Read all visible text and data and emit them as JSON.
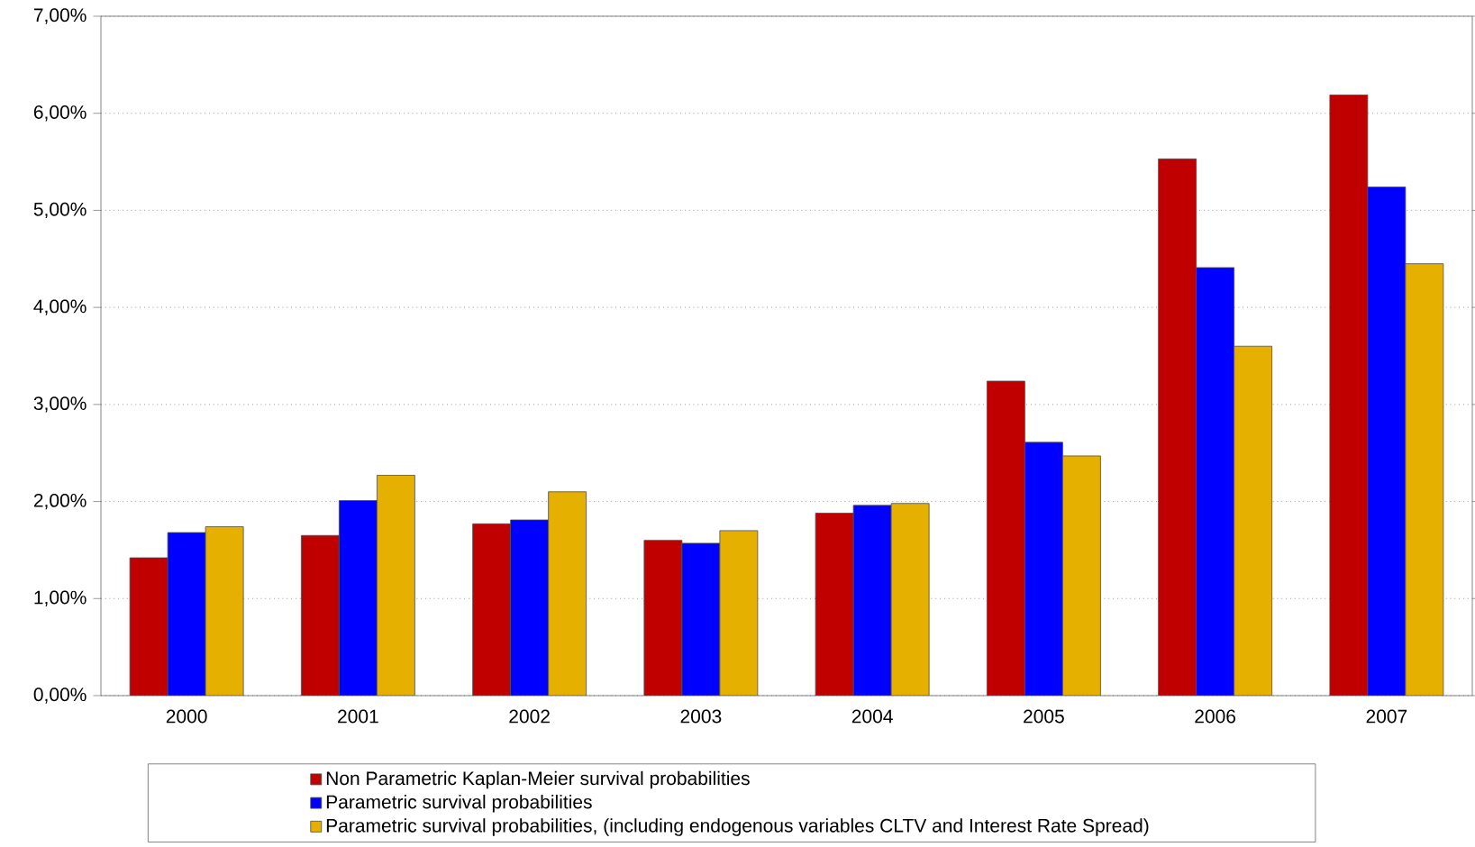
{
  "chart_data": {
    "type": "bar",
    "categories": [
      "2000",
      "2001",
      "2002",
      "2003",
      "2004",
      "2005",
      "2006",
      "2007"
    ],
    "series": [
      {
        "name": "Non Parametric Kaplan-Meier survival probabilities",
        "color": "#c00000",
        "values": [
          1.42,
          1.65,
          1.77,
          1.6,
          1.88,
          3.24,
          5.53,
          6.19
        ]
      },
      {
        "name": "Parametric survival probabilities",
        "color": "#0000ff",
        "values": [
          1.68,
          2.01,
          1.81,
          1.57,
          1.96,
          2.61,
          4.41,
          5.24
        ]
      },
      {
        "name": "Parametric survival probabilities, (including endogenous variables CLTV and Interest Rate Spread)",
        "color": "#e6b000",
        "values": [
          1.74,
          2.27,
          2.1,
          1.7,
          1.98,
          2.47,
          3.6,
          4.45
        ]
      }
    ],
    "ylim": [
      0,
      7
    ],
    "yticks": [
      {
        "value": 0,
        "label": "0,00%"
      },
      {
        "value": 1,
        "label": "1,00%"
      },
      {
        "value": 2,
        "label": "2,00%"
      },
      {
        "value": 3,
        "label": "3,00%"
      },
      {
        "value": 4,
        "label": "4,00%"
      },
      {
        "value": 5,
        "label": "5,00%"
      },
      {
        "value": 6,
        "label": "6,00%"
      },
      {
        "value": 7,
        "label": "7,00%"
      }
    ],
    "grid": "y",
    "legend": "bottom"
  }
}
